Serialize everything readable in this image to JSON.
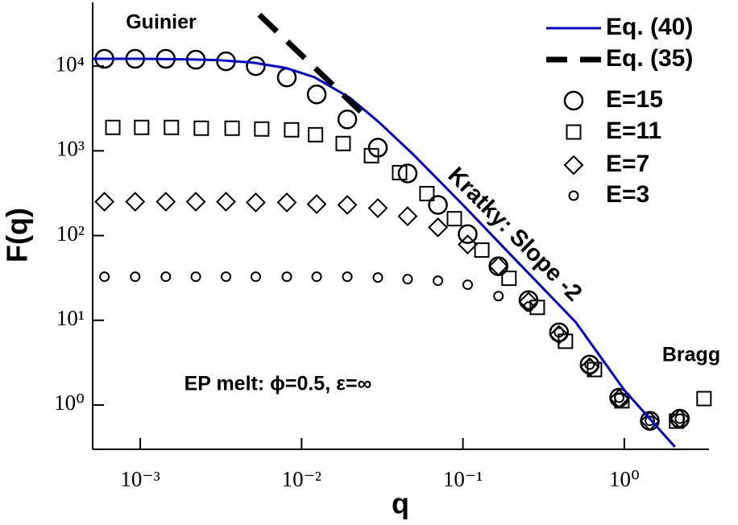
{
  "chart_data": {
    "type": "scatter",
    "xlabel": "q",
    "ylabel": "F(q)",
    "xscale": "log",
    "yscale": "log",
    "xlim": [
      0.000507,
      3.35
    ],
    "ylim": [
      0.3,
      56500
    ],
    "xticks": [
      {
        "value": 0.001,
        "label": "10⁻³"
      },
      {
        "value": 0.01,
        "label": "10⁻²"
      },
      {
        "value": 0.1,
        "label": "10⁻¹"
      },
      {
        "value": 1,
        "label": "10⁰"
      }
    ],
    "yticks": [
      {
        "value": 1,
        "label": "10⁰"
      },
      {
        "value": 10,
        "label": "10¹"
      },
      {
        "value": 100,
        "label": "10²"
      },
      {
        "value": 1000,
        "label": "10³"
      },
      {
        "value": 10000,
        "label": "10⁴"
      }
    ],
    "legend": "upper right",
    "annotations": [
      "Guinier",
      "Kratky: Slope -2",
      "Bragg",
      "EP melt: ϕ=0.5, ε=∞"
    ],
    "series": [
      {
        "name": "Eq. (40)",
        "color": "#0000dd",
        "marker": "line",
        "x": [
          0.000507,
          0.001,
          0.002,
          0.003,
          0.005,
          0.008,
          0.012,
          0.02,
          0.03,
          0.05,
          0.1,
          0.2,
          0.5,
          1,
          2.06
        ],
        "values": [
          12200,
          12200,
          12000,
          11800,
          11000,
          9500,
          7400,
          4200,
          2200,
          880,
          230,
          58,
          9.5,
          1.5,
          0.32
        ]
      },
      {
        "name": "Eq. (35)",
        "color": "#000000",
        "marker": "dash",
        "x": [
          0.00547,
          0.0252
        ],
        "values": [
          40400,
          2510
        ]
      },
      {
        "name": "E=15",
        "color": "#000000",
        "marker": "circle",
        "x": [
          0.0006,
          0.00093,
          0.00144,
          0.00221,
          0.0034,
          0.0052,
          0.0081,
          0.0124,
          0.0192,
          0.0297,
          0.0454,
          0.07,
          0.107,
          0.166,
          0.255,
          0.394,
          0.61,
          0.93,
          1.44,
          2.21
        ],
        "values": [
          12200,
          12200,
          12200,
          11900,
          11400,
          10000,
          7360,
          4640,
          2350,
          1090,
          541,
          230,
          104,
          43.5,
          17.3,
          7.2,
          3.0,
          1.22,
          0.65,
          0.69
        ]
      },
      {
        "name": "E=11",
        "color": "#000000",
        "marker": "square",
        "x": [
          0.000676,
          0.00102,
          0.00156,
          0.00239,
          0.00371,
          0.00566,
          0.00867,
          0.0122,
          0.0181,
          0.0271,
          0.0405,
          0.0598,
          0.0885,
          0.131,
          0.193,
          0.289,
          0.432,
          0.654,
          0.967,
          2.11,
          3.12
        ],
        "values": [
          1890,
          1890,
          1890,
          1850,
          1850,
          1810,
          1770,
          1550,
          1220,
          877,
          553,
          313,
          158,
          67.4,
          31.3,
          14.2,
          5.65,
          2.62,
          1.12,
          0.645,
          1.19
        ]
      },
      {
        "name": "E=7",
        "color": "#000000",
        "marker": "diamond",
        "x": [
          0.0006,
          0.00093,
          0.00144,
          0.00221,
          0.0034,
          0.0052,
          0.0081,
          0.0124,
          0.0192,
          0.0297,
          0.0454,
          0.07,
          0.107,
          0.166,
          0.255,
          0.394,
          0.61,
          0.93,
          1.44,
          2.21
        ],
        "values": [
          251,
          251,
          251,
          251,
          251,
          246,
          246,
          235,
          230,
          211,
          169,
          125,
          78.5,
          43.5,
          16.6,
          6.74,
          2.8,
          1.19,
          0.645,
          0.69
        ]
      },
      {
        "name": "E=3",
        "color": "#000000",
        "marker": "small-circle",
        "x": [
          0.0006,
          0.00093,
          0.00144,
          0.00221,
          0.0034,
          0.0052,
          0.0081,
          0.0124,
          0.0192,
          0.0297,
          0.0454,
          0.07,
          0.107,
          0.166,
          0.255,
          0.394,
          0.61,
          0.93,
          1.44,
          2.21
        ],
        "values": [
          32.7,
          32.7,
          32.7,
          32.7,
          32.7,
          32.7,
          32.7,
          32.7,
          32.7,
          32,
          30.6,
          29.3,
          26.3,
          19.3,
          14.5,
          7.2,
          3.0,
          1.22,
          0.65,
          0.69
        ]
      }
    ]
  }
}
